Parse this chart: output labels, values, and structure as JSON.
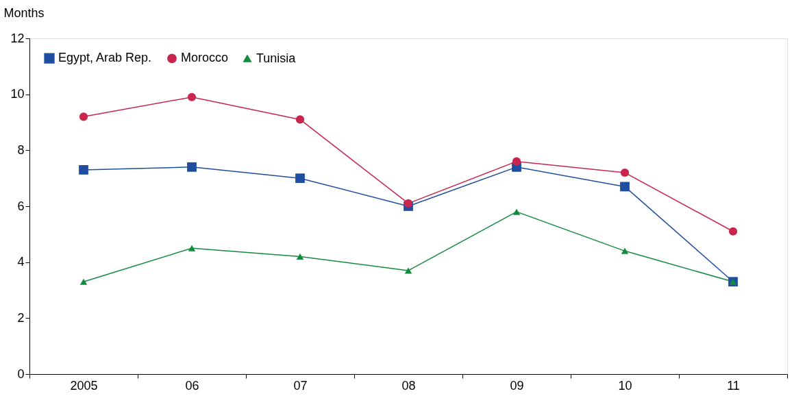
{
  "chart_data": {
    "type": "line",
    "ylabel": "Months",
    "categories": [
      "2005",
      "06",
      "07",
      "08",
      "09",
      "10",
      "11"
    ],
    "series": [
      {
        "name": "Egypt, Arab Rep.",
        "color": "#1f4ea0",
        "marker": "square",
        "values": [
          7.3,
          7.4,
          7.0,
          6.0,
          7.4,
          6.7,
          3.3
        ]
      },
      {
        "name": "Morocco",
        "color": "#c8254f",
        "marker": "circle",
        "values": [
          9.2,
          9.9,
          9.1,
          6.1,
          7.6,
          7.2,
          5.1
        ]
      },
      {
        "name": "Tunisia",
        "color": "#138a3e",
        "marker": "triangle",
        "values": [
          3.3,
          4.5,
          4.2,
          3.7,
          5.8,
          4.4,
          3.3
        ]
      }
    ],
    "ylim": [
      0,
      12
    ],
    "yticks": [
      0,
      2,
      4,
      6,
      8,
      10,
      12
    ],
    "grid": false,
    "legend": "top left",
    "line_style": "solid"
  }
}
